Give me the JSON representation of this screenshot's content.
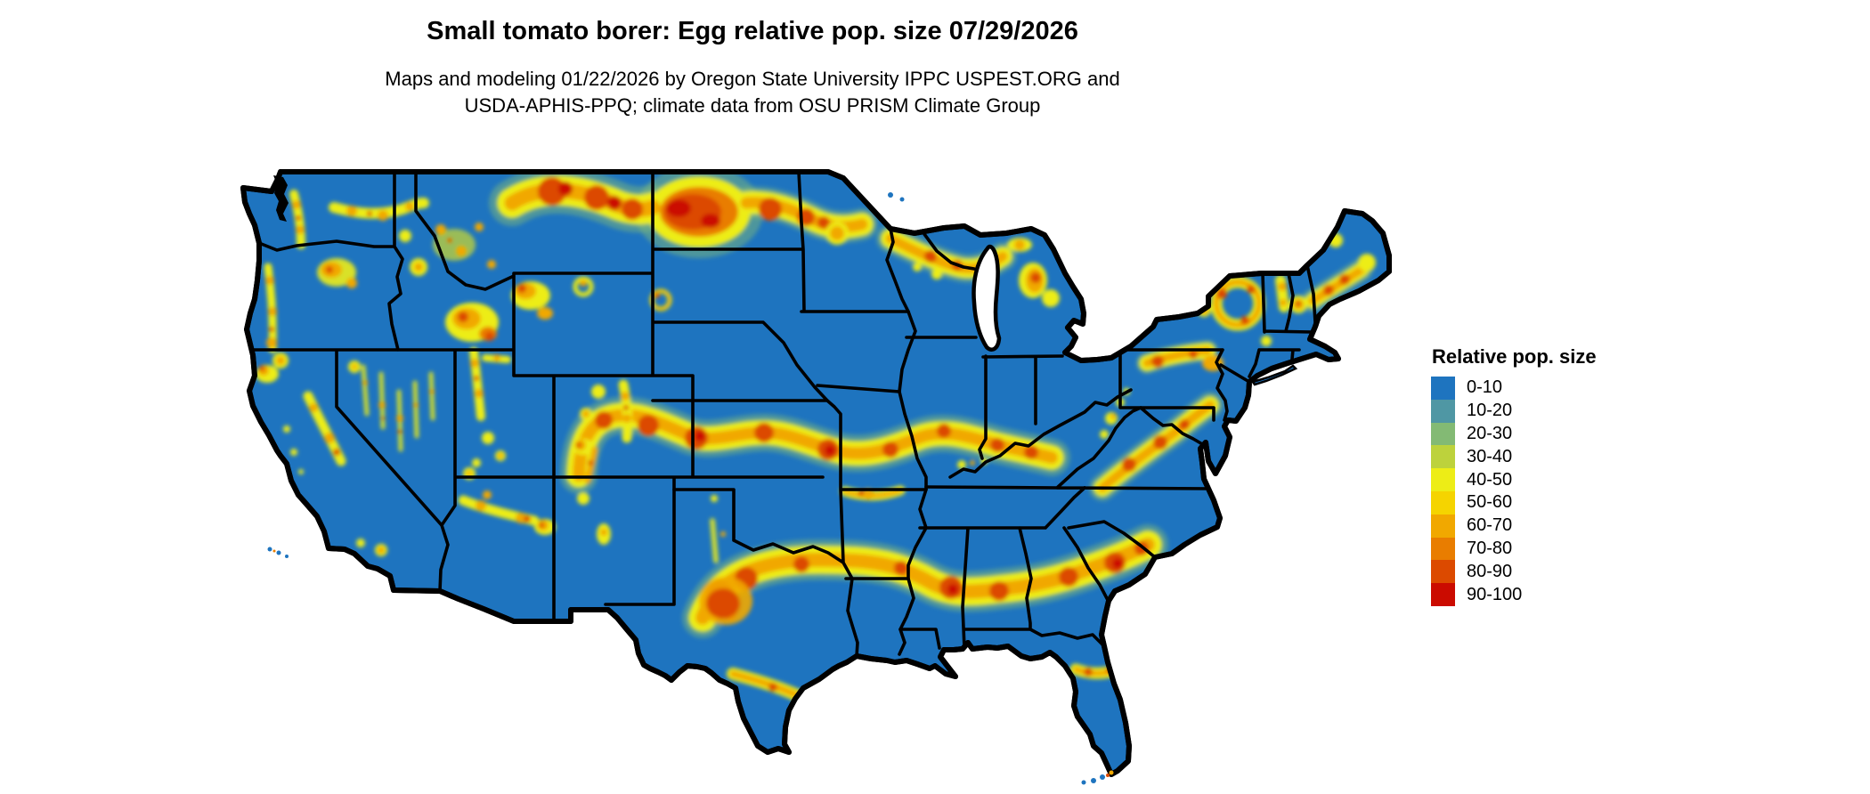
{
  "header": {
    "title": "Small tomato borer: Egg relative pop. size 07/29/2026",
    "subtitle_line1": "Maps and modeling 01/22/2026 by Oregon State University IPPC USPEST.ORG and",
    "subtitle_line2": "USDA-APHIS-PPQ; climate data from OSU PRISM Climate Group"
  },
  "legend": {
    "title": "Relative pop. size",
    "classes": [
      {
        "label": "0-10",
        "color": "#1e74bf"
      },
      {
        "label": "10-20",
        "color": "#4f97a4"
      },
      {
        "label": "20-30",
        "color": "#83ba74"
      },
      {
        "label": "30-40",
        "color": "#bdd23c"
      },
      {
        "label": "40-50",
        "color": "#eded16"
      },
      {
        "label": "50-60",
        "color": "#f5d400"
      },
      {
        "label": "60-70",
        "color": "#f1a800"
      },
      {
        "label": "70-80",
        "color": "#e97d00"
      },
      {
        "label": "80-90",
        "color": "#dc4a00"
      },
      {
        "label": "90-100",
        "color": "#cb0b00"
      }
    ]
  },
  "map": {
    "region": "Contiguous United States",
    "kind": "raster model output with state boundaries",
    "base_class": "0-10",
    "high_value_zones": [
      "northern Montana / North Dakota / northern Minnesota band",
      "northern Wisconsin and Michigan (Upper Peninsula and northern Lower Peninsula)",
      "central plains band across Kansas and Missouri into Kentucky",
      "southern band from central Texas through Louisiana, Mississippi, Alabama, Georgia to South Carolina",
      "northern Florida band",
      "Virginia piedmont / Appalachian band",
      "Adirondacks, Catskills, White Mountains and central Maine",
      "scattered western mountain ranges (Cascades, Blue Mtns, Idaho Rockies, Yellowstone, Wasatch, Nevada ranges, Mogollon Rim, Colorado Front Range, Sierra Nevada, Black Hills)"
    ]
  }
}
